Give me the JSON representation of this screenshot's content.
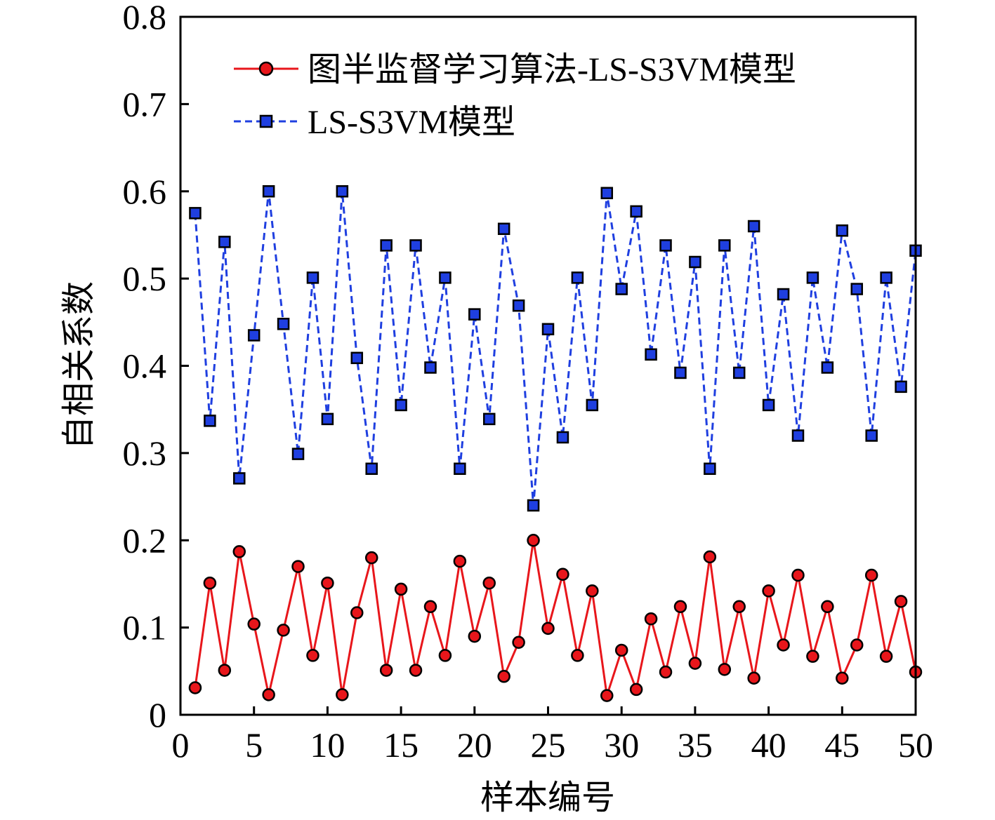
{
  "chart_data": {
    "type": "line",
    "xlabel": "样本编号",
    "ylabel": "自相关系数",
    "xlim": [
      0,
      50
    ],
    "ylim": [
      0,
      0.8
    ],
    "xticks": [
      0,
      5,
      10,
      15,
      20,
      25,
      30,
      35,
      40,
      45,
      50
    ],
    "yticks": [
      0,
      0.1,
      0.2,
      0.3,
      0.4,
      0.5,
      0.6,
      0.7,
      0.8
    ],
    "xtick_labels": [
      "0",
      "5",
      "10",
      "15",
      "20",
      "25",
      "30",
      "35",
      "40",
      "45",
      "50"
    ],
    "ytick_labels": [
      "0",
      "0.1",
      "0.2",
      "0.3",
      "0.4",
      "0.5",
      "0.6",
      "0.7",
      "0.8"
    ],
    "grid": false,
    "legend_position": "top-right",
    "x": [
      1,
      2,
      3,
      4,
      5,
      6,
      7,
      8,
      9,
      10,
      11,
      12,
      13,
      14,
      15,
      16,
      17,
      18,
      19,
      20,
      21,
      22,
      23,
      24,
      25,
      26,
      27,
      28,
      29,
      30,
      31,
      32,
      33,
      34,
      35,
      36,
      37,
      38,
      39,
      40,
      41,
      42,
      43,
      44,
      45,
      46,
      47,
      48,
      49,
      50
    ],
    "series": [
      {
        "name": "图半监督学习算法-LS-S3VM模型",
        "color": "#e8161b",
        "marker": "circle",
        "line_style": "solid",
        "values": [
          0.031,
          0.151,
          0.051,
          0.187,
          0.104,
          0.023,
          0.097,
          0.17,
          0.068,
          0.151,
          0.023,
          0.117,
          0.18,
          0.051,
          0.144,
          0.051,
          0.124,
          0.068,
          0.176,
          0.09,
          0.151,
          0.044,
          0.083,
          0.2,
          0.099,
          0.161,
          0.068,
          0.142,
          0.022,
          0.074,
          0.029,
          0.11,
          0.049,
          0.124,
          0.059,
          0.181,
          0.052,
          0.124,
          0.042,
          0.142,
          0.08,
          0.16,
          0.067,
          0.124,
          0.042,
          0.08,
          0.16,
          0.067,
          0.13,
          0.049
        ]
      },
      {
        "name": "LS-S3VM模型",
        "color": "#1f3fe0",
        "marker": "square",
        "line_style": "dashed",
        "values": [
          0.575,
          0.337,
          0.542,
          0.271,
          0.435,
          0.6,
          0.448,
          0.299,
          0.501,
          0.339,
          0.6,
          0.409,
          0.282,
          0.538,
          0.355,
          0.538,
          0.398,
          0.501,
          0.282,
          0.459,
          0.339,
          0.557,
          0.469,
          0.24,
          0.442,
          0.318,
          0.501,
          0.355,
          0.598,
          0.488,
          0.577,
          0.413,
          0.538,
          0.392,
          0.519,
          0.282,
          0.538,
          0.392,
          0.56,
          0.355,
          0.482,
          0.32,
          0.501,
          0.398,
          0.555,
          0.488,
          0.32,
          0.501,
          0.376,
          0.532
        ]
      }
    ]
  }
}
